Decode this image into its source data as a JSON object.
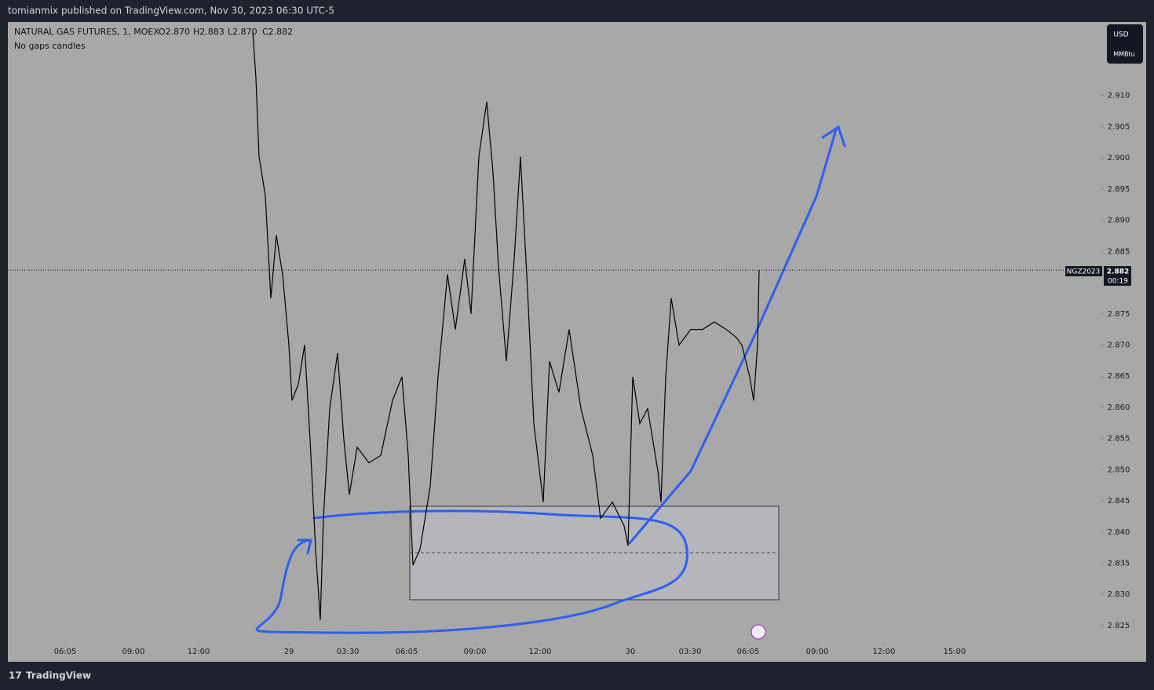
{
  "header": "tomianmix published on TradingView.com, Nov 30, 2023 06:30 UTC-5",
  "brand": "TradingView",
  "chart_data": {
    "type": "line",
    "title": "NATURAL GAS FUTURES, 1, MOEX",
    "ohlc": [
      "O2.870",
      "H2.883",
      "L2.870",
      "C2.882"
    ],
    "subtitle": "No gaps candles",
    "currency": "USD",
    "unit": "MMBtu",
    "symbol": "NGZ2023",
    "last_price": 2.882,
    "countdown": "00:19",
    "xlim": [
      0,
      1390
    ],
    "xticks": [
      {
        "value": 73,
        "label": "06:05"
      },
      {
        "value": 160,
        "label": "09:00"
      },
      {
        "value": 243,
        "label": "12:00"
      },
      {
        "value": 358,
        "label": "29"
      },
      {
        "value": 433,
        "label": "03:30"
      },
      {
        "value": 508,
        "label": "06:05"
      },
      {
        "value": 595,
        "label": "09:00"
      },
      {
        "value": 678,
        "label": "12:00"
      },
      {
        "value": 793,
        "label": "30"
      },
      {
        "value": 869,
        "label": "03:30"
      },
      {
        "value": 943,
        "label": "06:05"
      },
      {
        "value": 1031,
        "label": "09:00"
      },
      {
        "value": 1116,
        "label": "12:00"
      },
      {
        "value": 1206,
        "label": "15:00"
      }
    ],
    "ylim": [
      2.8192,
      2.9218
    ],
    "yticks": [
      2.825,
      {
        "value": 2.83,
        "label": "2.830"
      },
      2.835,
      {
        "value": 2.84,
        "label": "2.840"
      },
      2.845,
      {
        "value": 2.85,
        "label": "2.850"
      },
      2.855,
      {
        "value": 2.86,
        "label": "2.860"
      },
      2.865,
      {
        "value": 2.87,
        "label": "2.870"
      },
      2.875,
      2.885,
      {
        "value": 2.89,
        "label": "2.890"
      },
      2.895,
      {
        "value": 2.9,
        "label": "2.900"
      },
      2.905,
      {
        "value": 2.91,
        "label": "2.910"
      }
    ],
    "series": [
      {
        "color": "#000000",
        "x": [
          312,
          316,
          320,
          328,
          335,
          342,
          350,
          358,
          362,
          370,
          378,
          385,
          392,
          398,
          402,
          410,
          420,
          428,
          435,
          445,
          460,
          475,
          490,
          502,
          510,
          516,
          525,
          538,
          548,
          560,
          570,
          582,
          590,
          600,
          610,
          618,
          625,
          635,
          645,
          653,
          662,
          670,
          682,
          690,
          702,
          715,
          730,
          745,
          755,
          770,
          785,
          790,
          796,
          805,
          815,
          828,
          832,
          838,
          845,
          855,
          870,
          885,
          900,
          915,
          928,
          935,
          945,
          950,
          955,
          957
        ],
        "values": [
          2.9203,
          2.9128,
          2.9002,
          2.8939,
          2.8775,
          2.8876,
          2.8813,
          2.87,
          2.8611,
          2.8637,
          2.87,
          2.8548,
          2.8372,
          2.8259,
          2.8422,
          2.8598,
          2.8687,
          2.8548,
          2.846,
          2.8536,
          2.8511,
          2.8523,
          2.8611,
          2.8649,
          2.8523,
          2.8347,
          2.8372,
          2.8473,
          2.8649,
          2.8813,
          2.8725,
          2.8838,
          2.875,
          2.9002,
          2.909,
          2.8977,
          2.8825,
          2.8674,
          2.8838,
          2.9002,
          2.8788,
          2.8574,
          2.8448,
          2.8674,
          2.8624,
          2.8725,
          2.8598,
          2.8523,
          2.8422,
          2.8448,
          2.841,
          2.8378,
          2.8649,
          2.8574,
          2.8598,
          2.8498,
          2.8448,
          2.8649,
          2.8775,
          2.87,
          2.8725,
          2.8725,
          2.8737,
          2.8725,
          2.8712,
          2.87,
          2.8649,
          2.8611,
          2.87,
          2.882
        ]
      }
    ]
  }
}
